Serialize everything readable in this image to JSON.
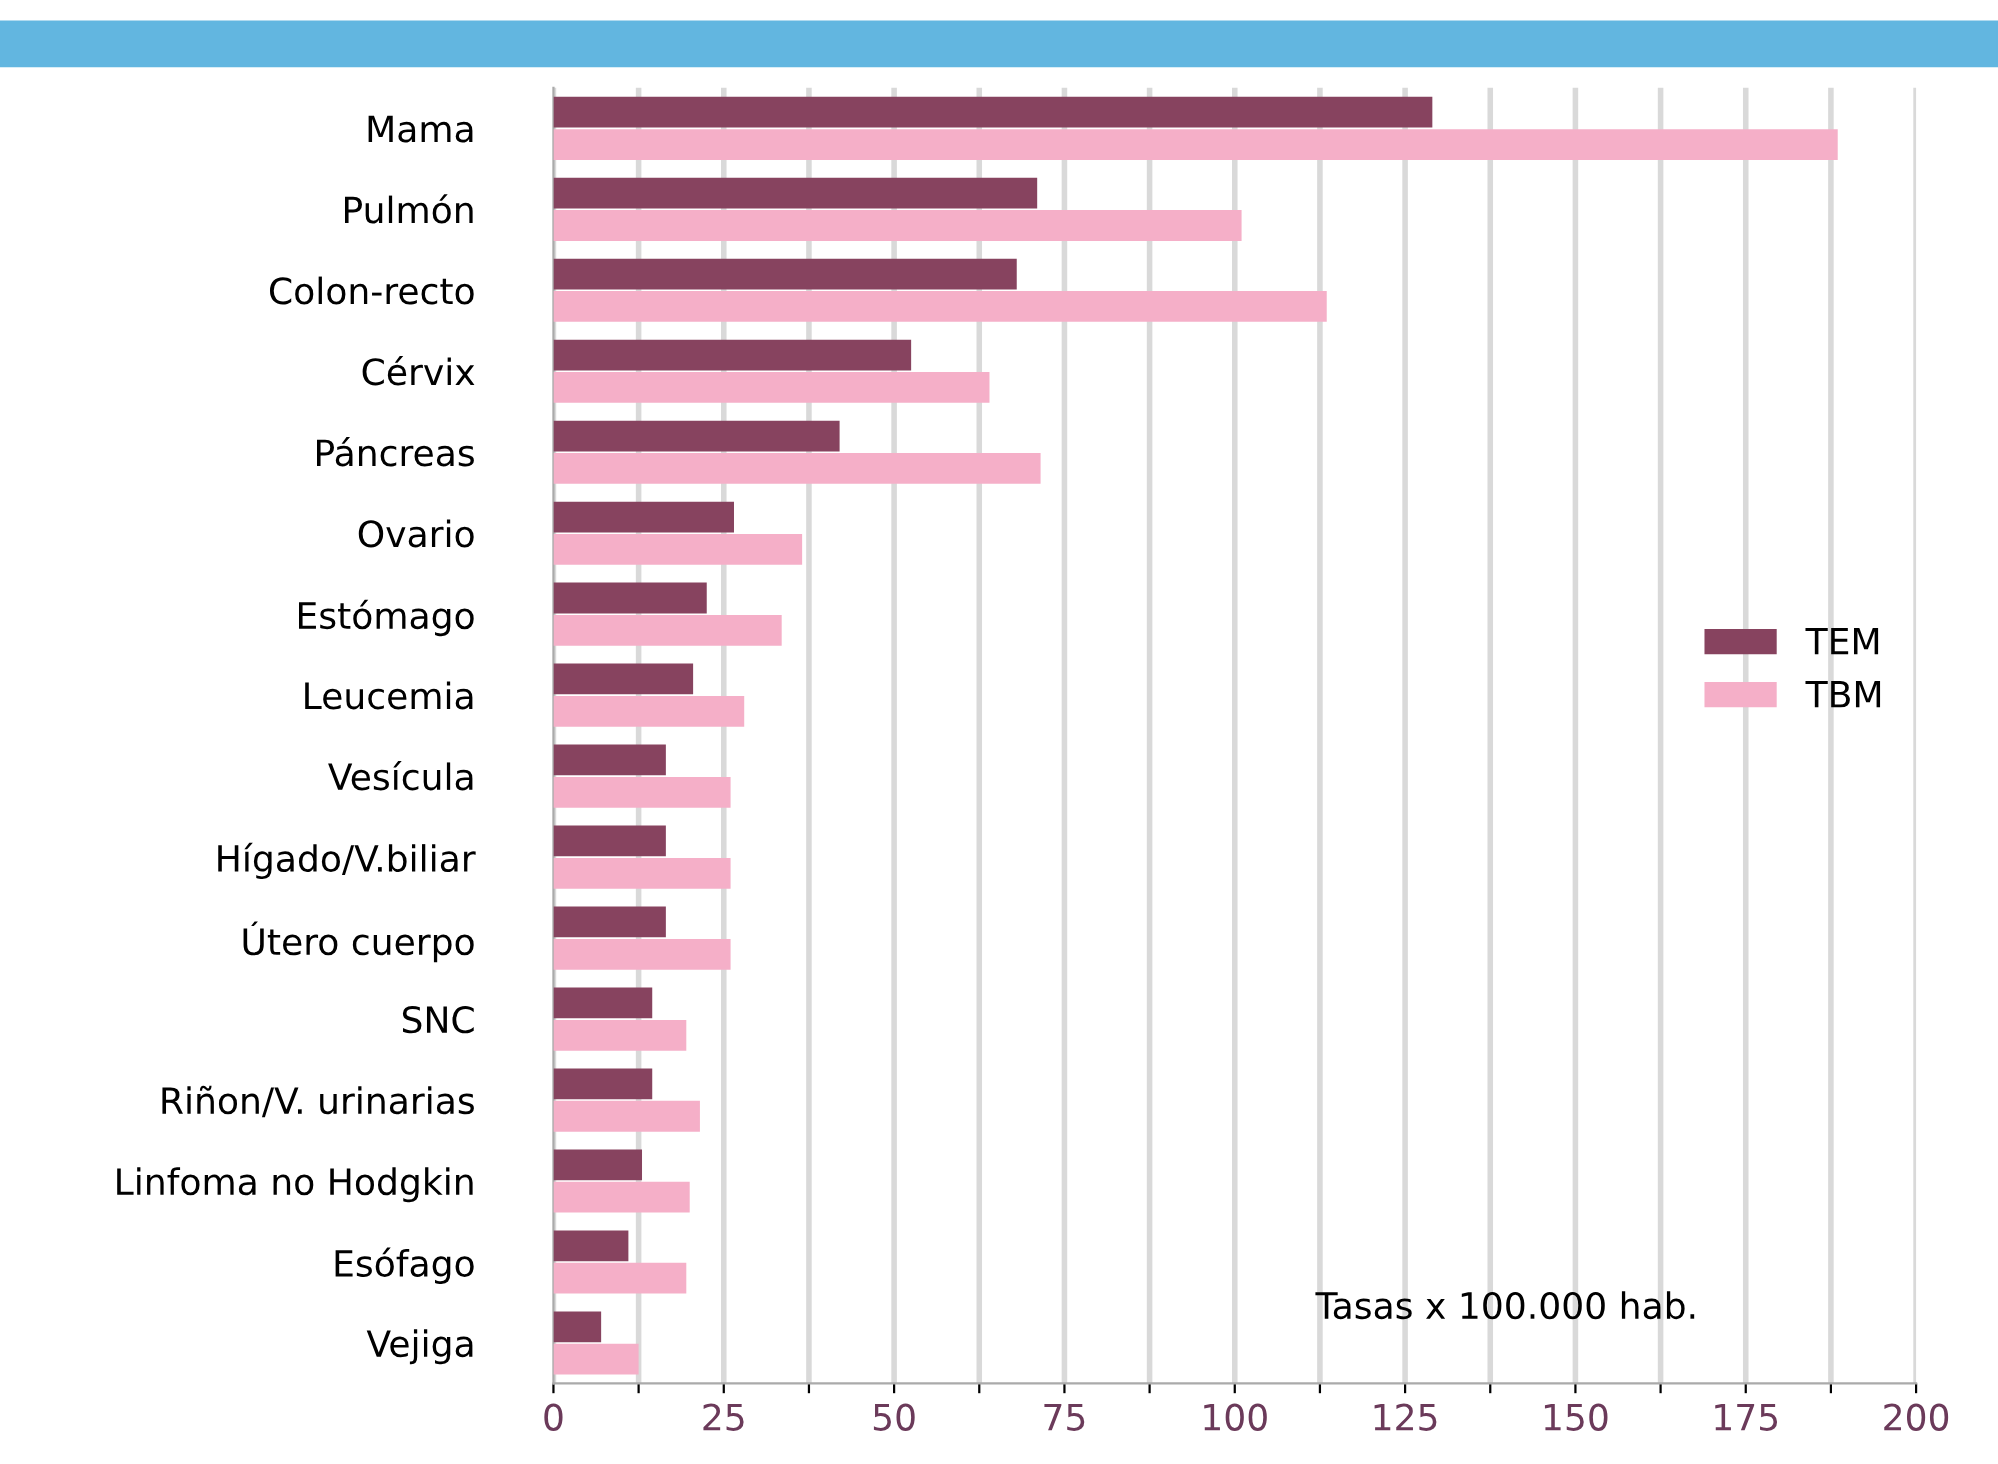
{
  "chart_data": {
    "type": "bar",
    "orientation": "horizontal",
    "categories": [
      "Mama",
      "Pulmón",
      "Colon-recto",
      "Cérvix",
      "Páncreas",
      "Ovario",
      "Estómago",
      "Leucemia",
      "Vesícula",
      "Hígado/V.biliar",
      "Útero cuerpo",
      "SNC",
      "Riñon/V. urinarias",
      "Linfoma no Hodgkin",
      "Esófago",
      "Vejiga"
    ],
    "series": [
      {
        "name": "TEM",
        "color": "#87435f",
        "values": [
          129,
          71,
          68,
          52.5,
          42,
          26.5,
          22.5,
          20.5,
          16.5,
          16.5,
          16.5,
          14.5,
          14.5,
          13,
          11,
          7
        ]
      },
      {
        "name": "TBM",
        "color": "#f5afc8",
        "values": [
          188.5,
          101,
          113.5,
          64,
          71.5,
          36.5,
          33.5,
          28,
          26,
          26,
          26,
          19.5,
          21.5,
          20,
          19.5,
          12.5
        ]
      }
    ],
    "xlim": [
      0,
      200
    ],
    "xticks": [
      0,
      {
        "value": 12.5,
        "label": null
      },
      25,
      {
        "value": 37.5,
        "label": null
      },
      50,
      {
        "value": 62.5,
        "label": null
      },
      75,
      {
        "value": 87.5,
        "label": null
      },
      100,
      {
        "value": 112.5,
        "label": null
      },
      125,
      {
        "value": 137.5,
        "label": null
      },
      150,
      {
        "value": 162.5,
        "label": null
      },
      175,
      {
        "value": 187.5,
        "label": null
      },
      200
    ],
    "grid": "x",
    "legend": "right",
    "annotations": [
      "Tasas x 100.000 hab."
    ]
  }
}
